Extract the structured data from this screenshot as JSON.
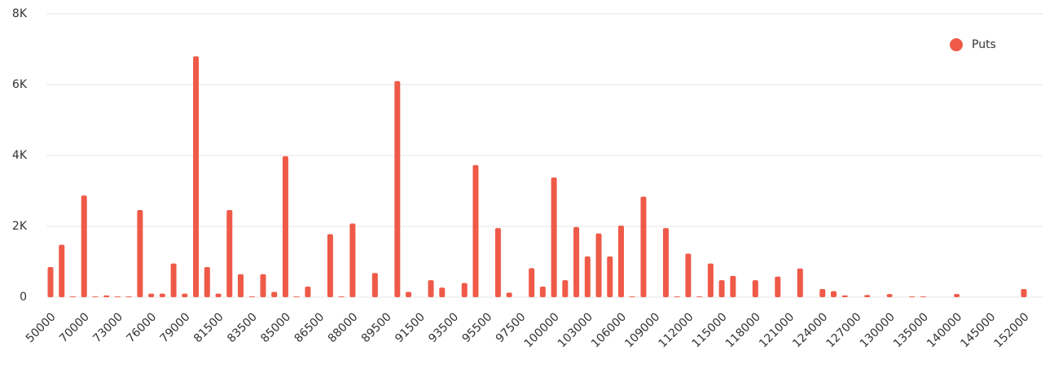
{
  "chart_data": {
    "type": "bar",
    "categories": [
      "50000",
      null,
      null,
      "70000",
      null,
      null,
      "73000",
      null,
      null,
      "76000",
      null,
      null,
      "79000",
      null,
      null,
      "81500",
      null,
      null,
      "83500",
      null,
      null,
      "85000",
      null,
      null,
      "86500",
      null,
      null,
      "88000",
      null,
      null,
      "89500",
      null,
      null,
      "91500",
      null,
      null,
      "93500",
      null,
      null,
      "95500",
      null,
      null,
      "97500",
      null,
      null,
      "100000",
      null,
      null,
      "103000",
      null,
      null,
      "106000",
      null,
      null,
      "109000",
      null,
      null,
      "112000",
      null,
      null,
      "115000",
      null,
      null,
      "118000",
      null,
      null,
      "121000",
      null,
      null,
      "124000",
      null,
      null,
      "127000",
      null,
      null,
      "130000",
      null,
      null,
      "135000",
      null,
      null,
      "140000",
      null,
      null,
      "145000",
      null,
      null,
      "152000"
    ],
    "series": [
      {
        "name": "Puts",
        "color": "#ef5a48",
        "values": [
          850,
          1480,
          20,
          2870,
          20,
          50,
          20,
          20,
          2460,
          100,
          100,
          950,
          100,
          6800,
          850,
          100,
          2460,
          650,
          20,
          650,
          150,
          3980,
          20,
          300,
          0,
          1780,
          20,
          2080,
          0,
          680,
          0,
          6100,
          150,
          0,
          480,
          270,
          0,
          400,
          3730,
          0,
          1950,
          130,
          0,
          820,
          300,
          3380,
          480,
          1980,
          1150,
          1800,
          1150,
          2020,
          20,
          2840,
          0,
          1950,
          20,
          1230,
          20,
          950,
          480,
          600,
          0,
          480,
          0,
          580,
          0,
          810,
          0,
          230,
          170,
          50,
          0,
          60,
          0,
          90,
          0,
          20,
          20,
          0,
          0,
          90,
          0,
          0,
          0,
          0,
          0,
          230
        ]
      }
    ],
    "ylim": [
      0,
      8000
    ],
    "yticks": [
      0,
      {
        "value": 2000,
        "label": "2K"
      },
      {
        "value": 4000,
        "label": "4K"
      },
      {
        "value": 6000,
        "label": "6K"
      },
      {
        "value": 8000,
        "label": "8K"
      }
    ],
    "grid": true,
    "legend": "top-right"
  }
}
